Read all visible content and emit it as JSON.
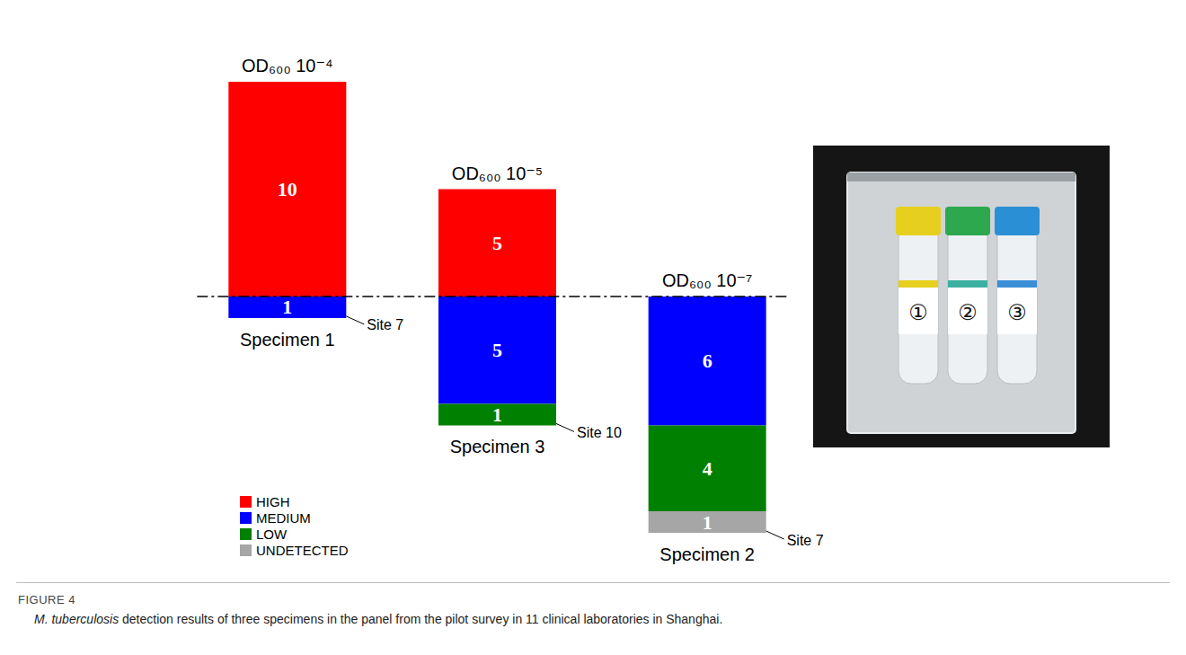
{
  "chart_data": {
    "type": "bar",
    "stacked": true,
    "data_labels": true,
    "tick_labels": false,
    "legend": "lower left",
    "categories": [
      "Specimen 1",
      "Specimen 3",
      "Specimen 2"
    ],
    "concentrations": [
      "OD₆₀₀ 10⁻⁴",
      "OD₆₀₀ 10⁻⁵",
      "OD₆₀₀ 10⁻⁷"
    ],
    "series": [
      {
        "name": "HIGH",
        "color": "#ff0000",
        "values": [
          10,
          5,
          0
        ]
      },
      {
        "name": "MEDIUM",
        "color": "#0000ff",
        "values": [
          1,
          5,
          6
        ],
        "axis": "y2"
      },
      {
        "name": "LOW",
        "color": "#008000",
        "values": [
          0,
          1,
          4
        ],
        "axis": "y2"
      },
      {
        "name": "UNDETECTED",
        "color": "#a6a6a6",
        "values": [
          0,
          0,
          1
        ],
        "axis": "y2"
      }
    ],
    "ylim": [
      0,
      10
    ],
    "yticks": [
      0,
      10
    ],
    "y2lim": [
      0,
      11
    ],
    "y2ticks": [
      0,
      11
    ],
    "annotations": [
      {
        "text": "Site 7",
        "category": "Specimen 1",
        "series": "MEDIUM"
      },
      {
        "text": "Site 10",
        "category": "Specimen 3",
        "series": "LOW"
      },
      {
        "text": "Site 7",
        "category": "Specimen 2",
        "series": "UNDETECTED"
      }
    ],
    "photo_labels": [
      "①",
      "②",
      "③"
    ],
    "figure_label": "FIGURE 4",
    "caption": [
      "M. tuberculosis",
      "detection results of three specimens in the panel from the pilot survey in 11 clinical laboratories in Shanghai."
    ]
  }
}
